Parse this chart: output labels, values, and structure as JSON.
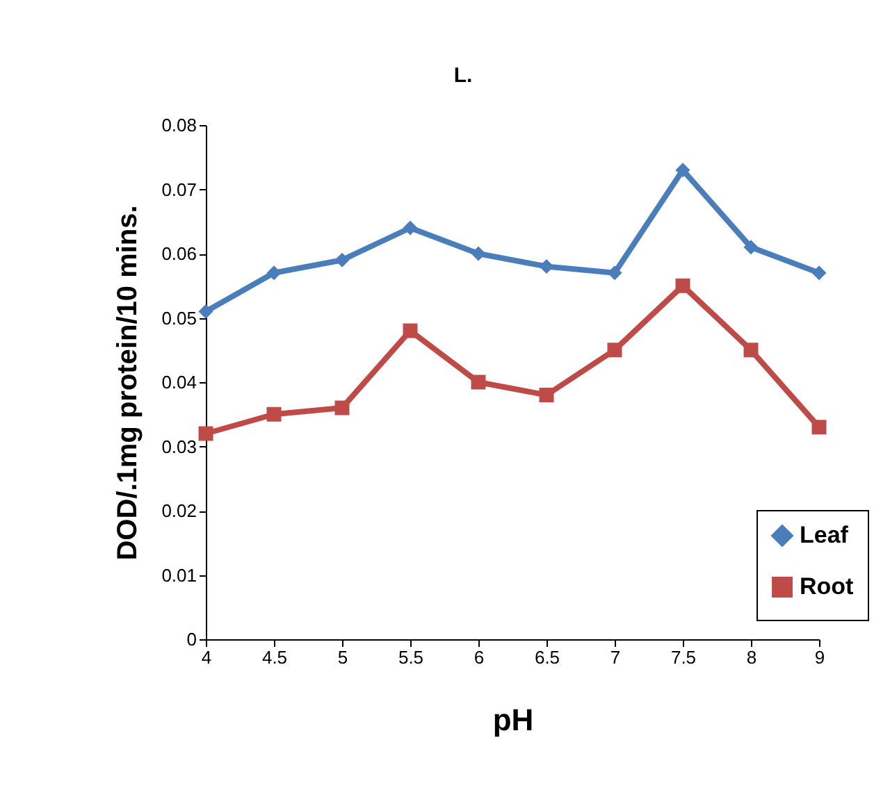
{
  "chart_data": {
    "type": "line",
    "title": "L.",
    "xlabel": "pH",
    "ylabel": "DOD/.1mg protein/10 mins.",
    "categories": [
      "4",
      "4.5",
      "5",
      "5.5",
      "6",
      "6.5",
      "7",
      "7.5",
      "8",
      "9"
    ],
    "series": [
      {
        "name": "Leaf",
        "color": "#4a7ebb",
        "marker": "diamond",
        "values": [
          0.051,
          0.057,
          0.059,
          0.064,
          0.06,
          0.058,
          0.057,
          0.073,
          0.061,
          0.057
        ]
      },
      {
        "name": "Root",
        "color": "#be4b48",
        "marker": "square",
        "values": [
          0.032,
          0.035,
          0.036,
          0.048,
          0.04,
          0.038,
          0.045,
          0.055,
          0.045,
          0.033
        ]
      }
    ],
    "ylim": [
      0,
      0.08
    ],
    "yticks": [
      0,
      0.01,
      0.02,
      0.03,
      0.04,
      0.05,
      0.06,
      0.07,
      0.08
    ],
    "grid": false,
    "legend": "bottom right",
    "line_style": "solid"
  }
}
